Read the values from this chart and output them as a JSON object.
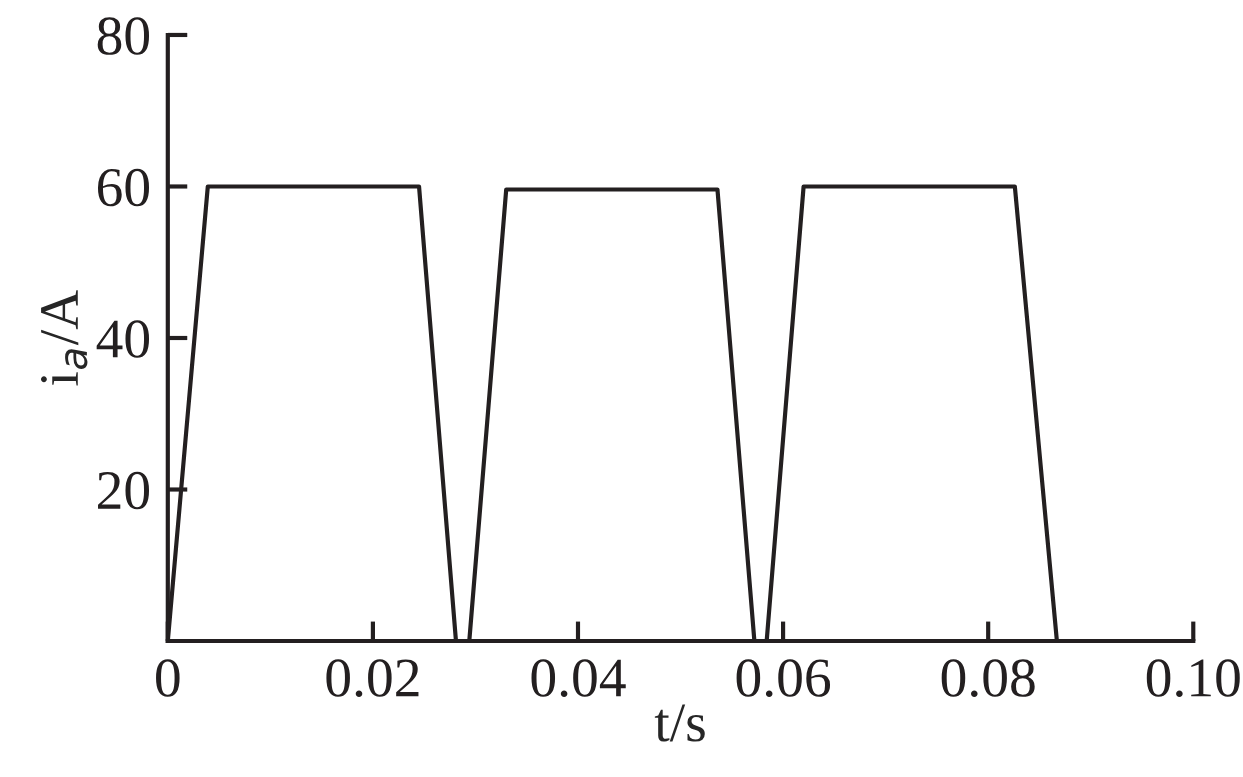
{
  "chart_data": {
    "type": "line",
    "xlabel": "t/s",
    "ylabel": "i$_{a}$/A",
    "x": [
      0,
      0.0039,
      0.0245,
      0.0281,
      0.0294,
      0.033,
      0.0536,
      0.0572,
      0.0584,
      0.062,
      0.0826,
      0.0867,
      0.1
    ],
    "series": [
      {
        "color": "#231f20",
        "values": [
          0,
          60,
          60,
          0,
          0,
          59.6,
          59.6,
          0,
          0,
          60,
          60,
          0,
          0
        ]
      }
    ],
    "xlim": [
      0,
      0.1
    ],
    "ylim": [
      0,
      80
    ],
    "xticks": [
      0,
      0.02,
      0.04,
      0.06,
      0.08,
      {
        "value": 0.1,
        "label": "0.10"
      }
    ],
    "yticks": [
      20,
      40,
      60,
      80
    ],
    "grid": false,
    "legend": false,
    "marker": "none",
    "line_style": "solid"
  }
}
